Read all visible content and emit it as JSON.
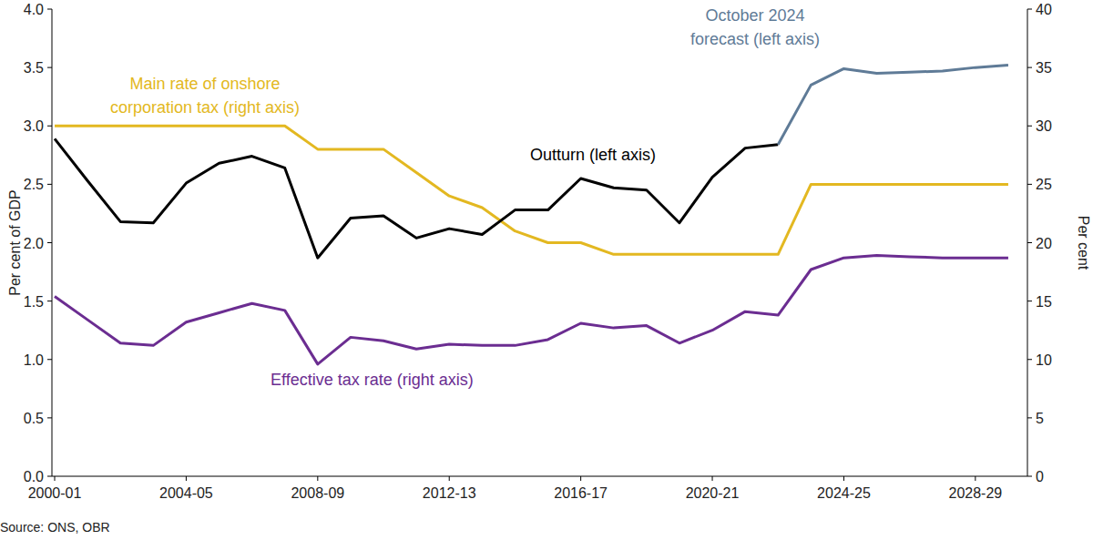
{
  "chart_data": {
    "type": "line",
    "categories": [
      "2000-01",
      null,
      null,
      null,
      "2004-05",
      null,
      null,
      null,
      "2008-09",
      null,
      null,
      null,
      "2012-13",
      null,
      null,
      null,
      "2016-17",
      null,
      null,
      null,
      "2020-21",
      null,
      null,
      null,
      "2024-25",
      null,
      null,
      null,
      "2028-29",
      null
    ],
    "series": [
      {
        "name": "Outturn (left axis)",
        "color": "#000000",
        "values": [
          2.89,
          2.53,
          2.18,
          2.17,
          2.51,
          2.68,
          2.74,
          2.64,
          1.87,
          2.21,
          2.23,
          2.04,
          2.12,
          2.07,
          2.28,
          2.28,
          2.55,
          2.47,
          2.45,
          2.17,
          2.56,
          2.81,
          2.84,
          null,
          null,
          null,
          null,
          null,
          null,
          null
        ]
      },
      {
        "name": "October 2024\nforecast (left axis)",
        "color": "#5f7b97",
        "values": [
          null,
          null,
          null,
          null,
          null,
          null,
          null,
          null,
          null,
          null,
          null,
          null,
          null,
          null,
          null,
          null,
          null,
          null,
          null,
          null,
          null,
          null,
          2.84,
          3.35,
          3.49,
          3.45,
          3.46,
          3.47,
          3.5,
          3.52
        ]
      },
      {
        "name": "Main rate of onshore\ncorporation tax (right axis)",
        "color": "#e3b821",
        "axis": "y2",
        "values": [
          30,
          30,
          30,
          30,
          30,
          30,
          30,
          30,
          28,
          28,
          28,
          26,
          24,
          23,
          21,
          20,
          20,
          19,
          19,
          19,
          19,
          19,
          19,
          25,
          25,
          25,
          25,
          25,
          25,
          25
        ]
      },
      {
        "name": "Effective tax rate (right axis)",
        "color": "#6b2d91",
        "axis": "y2",
        "values": [
          15.4,
          13.4,
          11.4,
          11.2,
          13.2,
          14.0,
          14.8,
          14.2,
          9.6,
          11.9,
          11.6,
          10.9,
          11.3,
          11.2,
          11.2,
          11.7,
          13.1,
          12.7,
          12.9,
          11.4,
          12.5,
          14.1,
          13.8,
          17.7,
          18.7,
          18.9,
          18.8,
          18.7,
          18.7,
          18.7
        ]
      }
    ],
    "y_label": "Per cent of GDP",
    "y2_label": "Per cent",
    "source": "Source: ONS, OBR",
    "ylim": [
      0,
      4
    ],
    "yticks": [
      {
        "value": 0,
        "label": "0.0"
      },
      0.5,
      {
        "value": 1,
        "label": "1.0"
      },
      1.5,
      {
        "value": 2,
        "label": "2.0"
      },
      2.5,
      {
        "value": 3,
        "label": "3.0"
      },
      3.5,
      {
        "value": 4,
        "label": "4.0"
      }
    ],
    "y2lim": [
      0,
      40
    ],
    "y2ticks": [
      0,
      5,
      10,
      15,
      20,
      25,
      30,
      35,
      40
    ],
    "grid": false
  }
}
